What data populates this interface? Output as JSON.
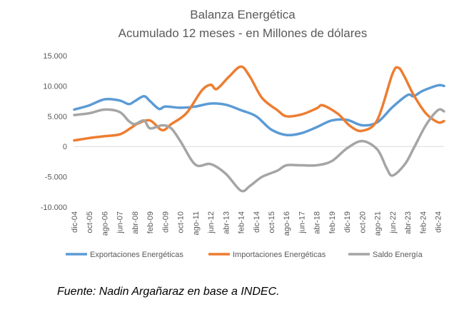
{
  "chart_data": {
    "type": "line",
    "title": "Balanza Energética",
    "subtitle": "Acumulado 12 meses - en Millones de dólares",
    "xlabel": "",
    "ylabel": "",
    "ylim": [
      -10000,
      15000
    ],
    "yticks": [
      15000,
      10000,
      5000,
      0,
      -5000,
      -10000
    ],
    "ytick_labels": [
      "15.000",
      "10.000",
      "5.000",
      "0",
      "-5.000",
      "-10.000"
    ],
    "grid": false,
    "legend_position": "bottom",
    "x_range": [
      "2004-12",
      "2025-04"
    ],
    "x_tick_labels": [
      {
        "date": "2004-12",
        "label": "dic-04"
      },
      {
        "date": "2005-10",
        "label": "oct-05"
      },
      {
        "date": "2006-08",
        "label": "ago-06"
      },
      {
        "date": "2007-06",
        "label": "jun-07"
      },
      {
        "date": "2008-04",
        "label": "abr-08"
      },
      {
        "date": "2009-02",
        "label": "feb-09"
      },
      {
        "date": "2009-12",
        "label": "dic-09"
      },
      {
        "date": "2010-10",
        "label": "oct-10"
      },
      {
        "date": "2011-08",
        "label": "ago-11"
      },
      {
        "date": "2012-06",
        "label": "jun-12"
      },
      {
        "date": "2013-04",
        "label": "abr-13"
      },
      {
        "date": "2014-02",
        "label": "feb-14"
      },
      {
        "date": "2014-12",
        "label": "dic-14"
      },
      {
        "date": "2015-10",
        "label": "oct-15"
      },
      {
        "date": "2016-08",
        "label": "ago-16"
      },
      {
        "date": "2017-06",
        "label": "jun-17"
      },
      {
        "date": "2018-04",
        "label": "abr-18"
      },
      {
        "date": "2019-02",
        "label": "feb-19"
      },
      {
        "date": "2019-12",
        "label": "dic-19"
      },
      {
        "date": "2020-10",
        "label": "oct-20"
      },
      {
        "date": "2021-08",
        "label": "ago-21"
      },
      {
        "date": "2022-06",
        "label": "jun-22"
      },
      {
        "date": "2023-04",
        "label": "abr-23"
      },
      {
        "date": "2024-02",
        "label": "feb-24"
      },
      {
        "date": "2024-12",
        "label": "dic-24"
      }
    ],
    "series": [
      {
        "name": "Exportaciones Energéticas",
        "color": "#5B9BD5",
        "points": [
          [
            "2004-12",
            6100
          ],
          [
            "2005-10",
            6800
          ],
          [
            "2006-08",
            7800
          ],
          [
            "2007-06",
            7600
          ],
          [
            "2007-12",
            7000
          ],
          [
            "2008-04",
            7500
          ],
          [
            "2008-10",
            8300
          ],
          [
            "2009-02",
            7500
          ],
          [
            "2009-08",
            6200
          ],
          [
            "2009-12",
            6600
          ],
          [
            "2010-10",
            6400
          ],
          [
            "2011-08",
            6600
          ],
          [
            "2012-06",
            7100
          ],
          [
            "2013-04",
            6900
          ],
          [
            "2014-02",
            6000
          ],
          [
            "2014-12",
            5000
          ],
          [
            "2015-10",
            2800
          ],
          [
            "2016-08",
            1900
          ],
          [
            "2017-06",
            2200
          ],
          [
            "2018-04",
            3200
          ],
          [
            "2019-02",
            4300
          ],
          [
            "2019-12",
            4400
          ],
          [
            "2020-10",
            3500
          ],
          [
            "2021-08",
            4000
          ],
          [
            "2022-06",
            6500
          ],
          [
            "2023-04",
            8500
          ],
          [
            "2023-08",
            8300
          ],
          [
            "2024-02",
            9200
          ],
          [
            "2024-12",
            10100
          ],
          [
            "2025-04",
            10000
          ]
        ]
      },
      {
        "name": "Importaciones Energéticas",
        "color": "#ED7D31",
        "points": [
          [
            "2004-12",
            1000
          ],
          [
            "2005-10",
            1400
          ],
          [
            "2006-08",
            1700
          ],
          [
            "2007-06",
            2000
          ],
          [
            "2008-01",
            3000
          ],
          [
            "2008-06",
            3800
          ],
          [
            "2009-02",
            4300
          ],
          [
            "2009-10",
            2700
          ],
          [
            "2010-04",
            3700
          ],
          [
            "2011-02",
            5500
          ],
          [
            "2011-12",
            9200
          ],
          [
            "2012-06",
            10200
          ],
          [
            "2012-10",
            9500
          ],
          [
            "2013-06",
            11500
          ],
          [
            "2014-02",
            13200
          ],
          [
            "2014-08",
            11500
          ],
          [
            "2015-04",
            8000
          ],
          [
            "2016-02",
            6000
          ],
          [
            "2016-08",
            5000
          ],
          [
            "2017-06",
            5300
          ],
          [
            "2018-04",
            6300
          ],
          [
            "2018-08",
            6800
          ],
          [
            "2019-06",
            5400
          ],
          [
            "2020-02",
            3400
          ],
          [
            "2020-10",
            2600
          ],
          [
            "2021-08",
            4400
          ],
          [
            "2022-06",
            12000
          ],
          [
            "2022-10",
            13000
          ],
          [
            "2023-02",
            11500
          ],
          [
            "2023-08",
            8500
          ],
          [
            "2024-04",
            5500
          ],
          [
            "2024-12",
            4000
          ],
          [
            "2025-04",
            4200
          ]
        ]
      },
      {
        "name": "Saldo Energía",
        "color": "#A5A5A5",
        "points": [
          [
            "2004-12",
            5200
          ],
          [
            "2005-10",
            5500
          ],
          [
            "2006-08",
            6100
          ],
          [
            "2007-06",
            5700
          ],
          [
            "2007-12",
            4200
          ],
          [
            "2008-04",
            3700
          ],
          [
            "2008-10",
            4300
          ],
          [
            "2009-02",
            3000
          ],
          [
            "2009-10",
            3500
          ],
          [
            "2010-04",
            3000
          ],
          [
            "2010-10",
            900
          ],
          [
            "2011-08",
            -3000
          ],
          [
            "2012-06",
            -2900
          ],
          [
            "2013-04",
            -4500
          ],
          [
            "2014-02",
            -7300
          ],
          [
            "2014-08",
            -6500
          ],
          [
            "2015-04",
            -5000
          ],
          [
            "2016-02",
            -4000
          ],
          [
            "2016-08",
            -3100
          ],
          [
            "2017-06",
            -3100
          ],
          [
            "2018-04",
            -3100
          ],
          [
            "2019-02",
            -2400
          ],
          [
            "2019-12",
            -300
          ],
          [
            "2020-10",
            900
          ],
          [
            "2021-08",
            -500
          ],
          [
            "2022-02",
            -3500
          ],
          [
            "2022-06",
            -4800
          ],
          [
            "2023-02",
            -3000
          ],
          [
            "2023-08",
            -300
          ],
          [
            "2024-04",
            3500
          ],
          [
            "2024-12",
            6000
          ],
          [
            "2025-04",
            5800
          ]
        ]
      }
    ]
  },
  "source": "Fuente: Nadin Argañaraz en base a INDEC."
}
